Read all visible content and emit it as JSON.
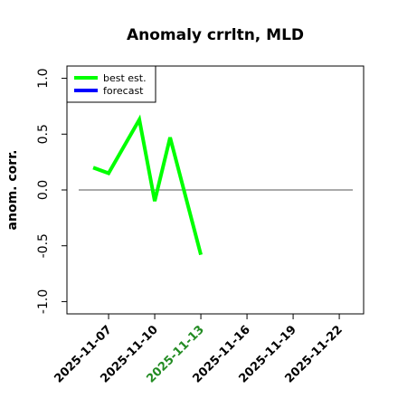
{
  "chart_data": {
    "type": "line",
    "title": "Anomaly crrltn, MLD",
    "y_label": "anom. corr.",
    "x": [
      "2025-11-06",
      "2025-11-07",
      "2025-11-09",
      "2025-11-10",
      "2025-11-11",
      "2025-11-13"
    ],
    "series": [
      {
        "name": "best est.",
        "color": "#00ff00",
        "values": [
          0.2,
          0.15,
          0.63,
          -0.1,
          0.47,
          -0.58
        ]
      },
      {
        "name": "forecast",
        "color": "#0000ff",
        "values": [
          null,
          null,
          null,
          null,
          null,
          null
        ]
      }
    ],
    "xlim": [
      "2025-11-04T07:00:00Z",
      "2025-11-23T14:00:00Z"
    ],
    "xticks": [
      "2025-11-07",
      "2025-11-10",
      "2025-11-13",
      "2025-11-16",
      "2025-11-19",
      "2025-11-22"
    ],
    "highlight_xtick": "2025-11-13",
    "highlight_color": "#228b22",
    "ylim": [
      -1.11,
      1.11
    ],
    "yticks": [
      {
        "value": -1,
        "label": "-1.0"
      },
      {
        "value": -0.5,
        "label": "-0.5"
      },
      {
        "value": 0,
        "label": "0.0"
      },
      {
        "value": 0.5,
        "label": "0.5"
      },
      {
        "value": 1,
        "label": "1.0"
      }
    ],
    "reference_line": 0,
    "legend": "upper left"
  }
}
